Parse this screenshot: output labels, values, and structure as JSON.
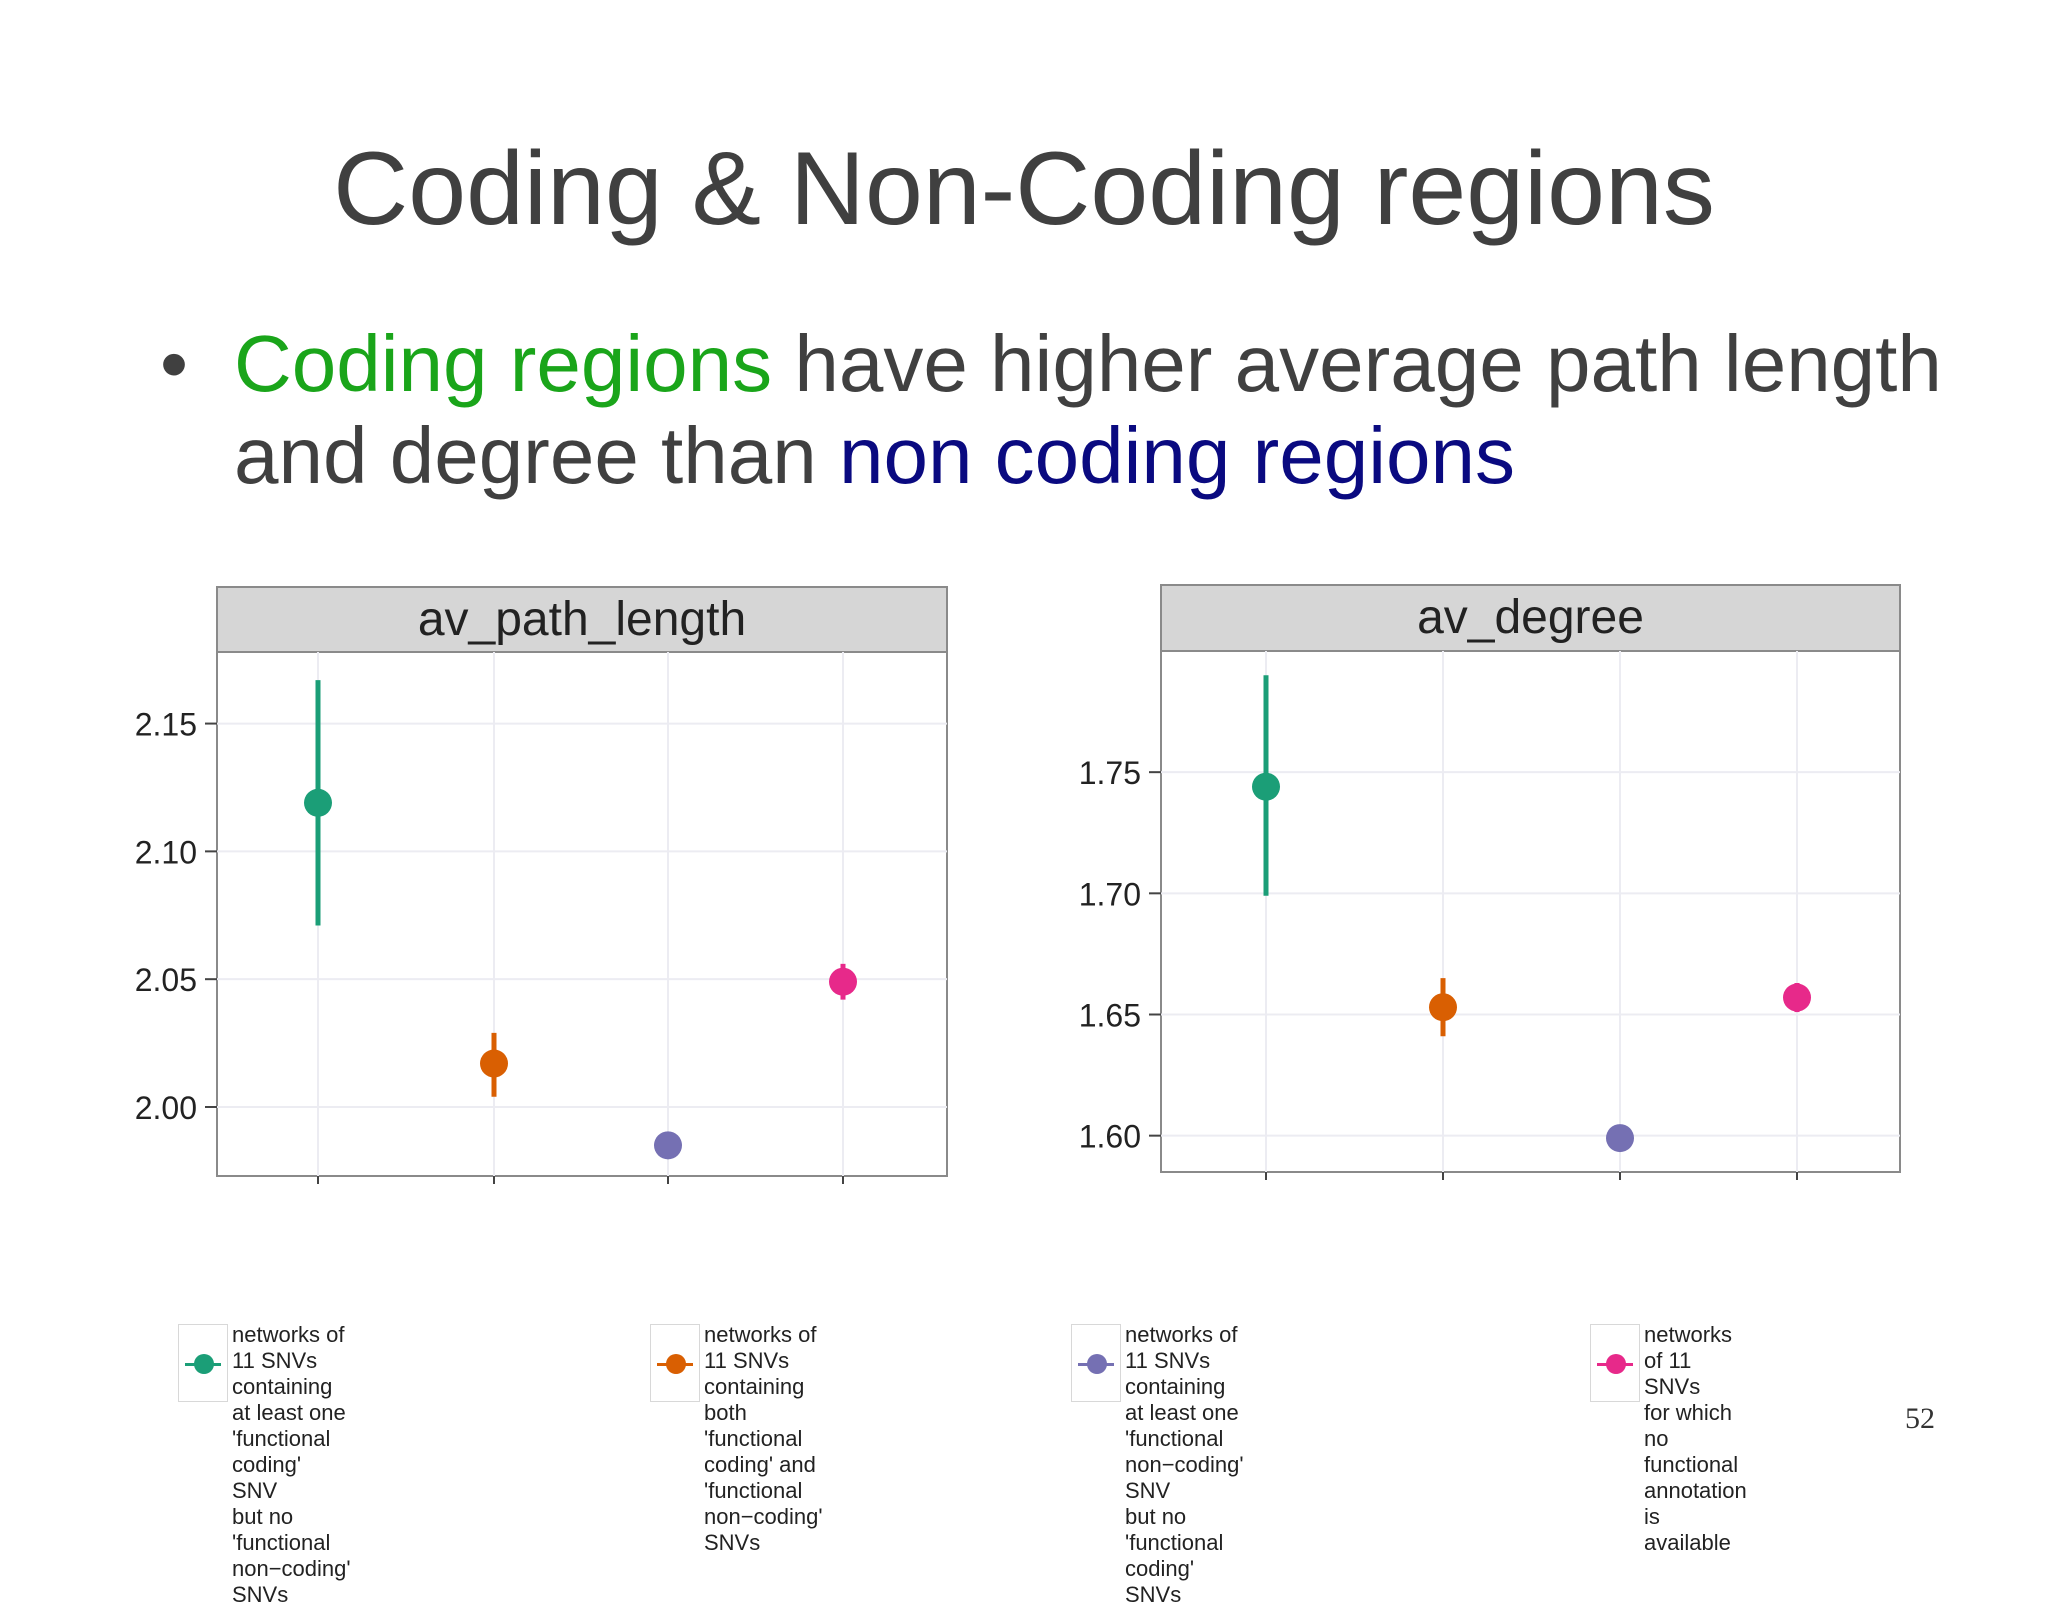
{
  "slide": {
    "title": "Coding & Non-Coding regions",
    "bullet": {
      "symbol": "•",
      "highlight_green": "Coding regions",
      "middle": " have higher average path length and degree than ",
      "highlight_navy": "non coding regions"
    },
    "page_number": "52"
  },
  "colors": {
    "series": [
      "#1b9e77",
      "#d95f02",
      "#7570b3",
      "#e7298a"
    ],
    "highlight_green": "#1aa51a",
    "highlight_navy": "#0a0a80"
  },
  "chart_data": [
    {
      "type": "scatter",
      "title": "av_path_length",
      "ylim": [
        1.973,
        2.178
      ],
      "yticks": [
        2.0,
        2.05,
        2.1,
        2.15
      ],
      "ytick_labels": [
        "2.00",
        "2.05",
        "2.10",
        "2.15"
      ],
      "grid": true,
      "points": [
        {
          "series": 0,
          "y": 2.119,
          "lo": 2.071,
          "hi": 2.167
        },
        {
          "series": 1,
          "y": 2.017,
          "lo": 2.004,
          "hi": 2.029
        },
        {
          "series": 2,
          "y": 1.985,
          "lo": 1.985,
          "hi": 1.985
        },
        {
          "series": 3,
          "y": 2.049,
          "lo": 2.042,
          "hi": 2.056
        }
      ]
    },
    {
      "type": "scatter",
      "title": "av_degree",
      "ylim": [
        1.585,
        1.8
      ],
      "yticks": [
        1.6,
        1.65,
        1.7,
        1.75
      ],
      "ytick_labels": [
        "1.60",
        "1.65",
        "1.70",
        "1.75"
      ],
      "grid": true,
      "points": [
        {
          "series": 0,
          "y": 1.744,
          "lo": 1.699,
          "hi": 1.79
        },
        {
          "series": 1,
          "y": 1.653,
          "lo": 1.641,
          "hi": 1.665
        },
        {
          "series": 2,
          "y": 1.599,
          "lo": 1.599,
          "hi": 1.599
        },
        {
          "series": 3,
          "y": 1.657,
          "lo": 1.651,
          "hi": 1.663
        }
      ]
    }
  ],
  "legend": [
    {
      "label": "networks of 11 SNVs containing\nat least one 'functional coding' SNV\nbut no 'functional non−coding' SNVs"
    },
    {
      "label": "networks of 11 SNVs containing\nboth 'functional coding' and\n'functional non−coding' SNVs"
    },
    {
      "label": "networks of 11 SNVs containing\nat least one 'functional non−coding' SNV\nbut no 'functional coding' SNVs"
    },
    {
      "label": "networks of 11 SNVs\nfor which no functional\nannotation is available"
    }
  ]
}
